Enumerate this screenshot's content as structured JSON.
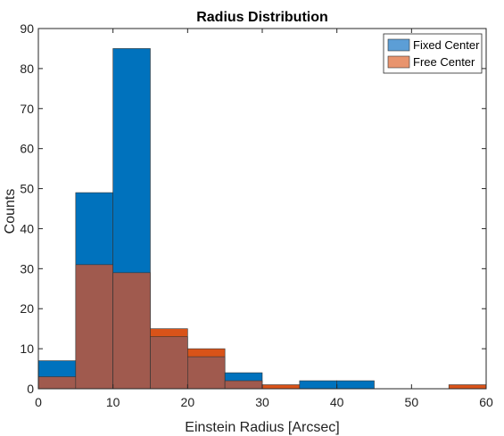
{
  "chart_data": {
    "type": "bar",
    "title": "Radius Distribution",
    "xlabel": "Einstein Radius [Arcsec]",
    "ylabel": "Counts",
    "xlim": [
      0,
      60
    ],
    "ylim": [
      0,
      90
    ],
    "xticks": [
      0,
      10,
      20,
      30,
      40,
      50,
      60
    ],
    "yticks": [
      0,
      10,
      20,
      30,
      40,
      50,
      60,
      70,
      80,
      90
    ],
    "bin_edges": [
      0,
      5,
      10,
      15,
      20,
      25,
      30,
      35,
      40,
      45,
      50,
      55,
      60
    ],
    "overlap_color": "#a05a4e",
    "legend_position": "top-right",
    "series": [
      {
        "name": "Fixed Center",
        "color": "#0072bd",
        "values": [
          7,
          49,
          85,
          13,
          8,
          4,
          0,
          2,
          2,
          0,
          0,
          0
        ]
      },
      {
        "name": "Free Center",
        "color": "#d95319",
        "values": [
          3,
          31,
          29,
          15,
          10,
          2,
          1,
          0,
          0,
          0,
          0,
          1
        ]
      }
    ]
  }
}
